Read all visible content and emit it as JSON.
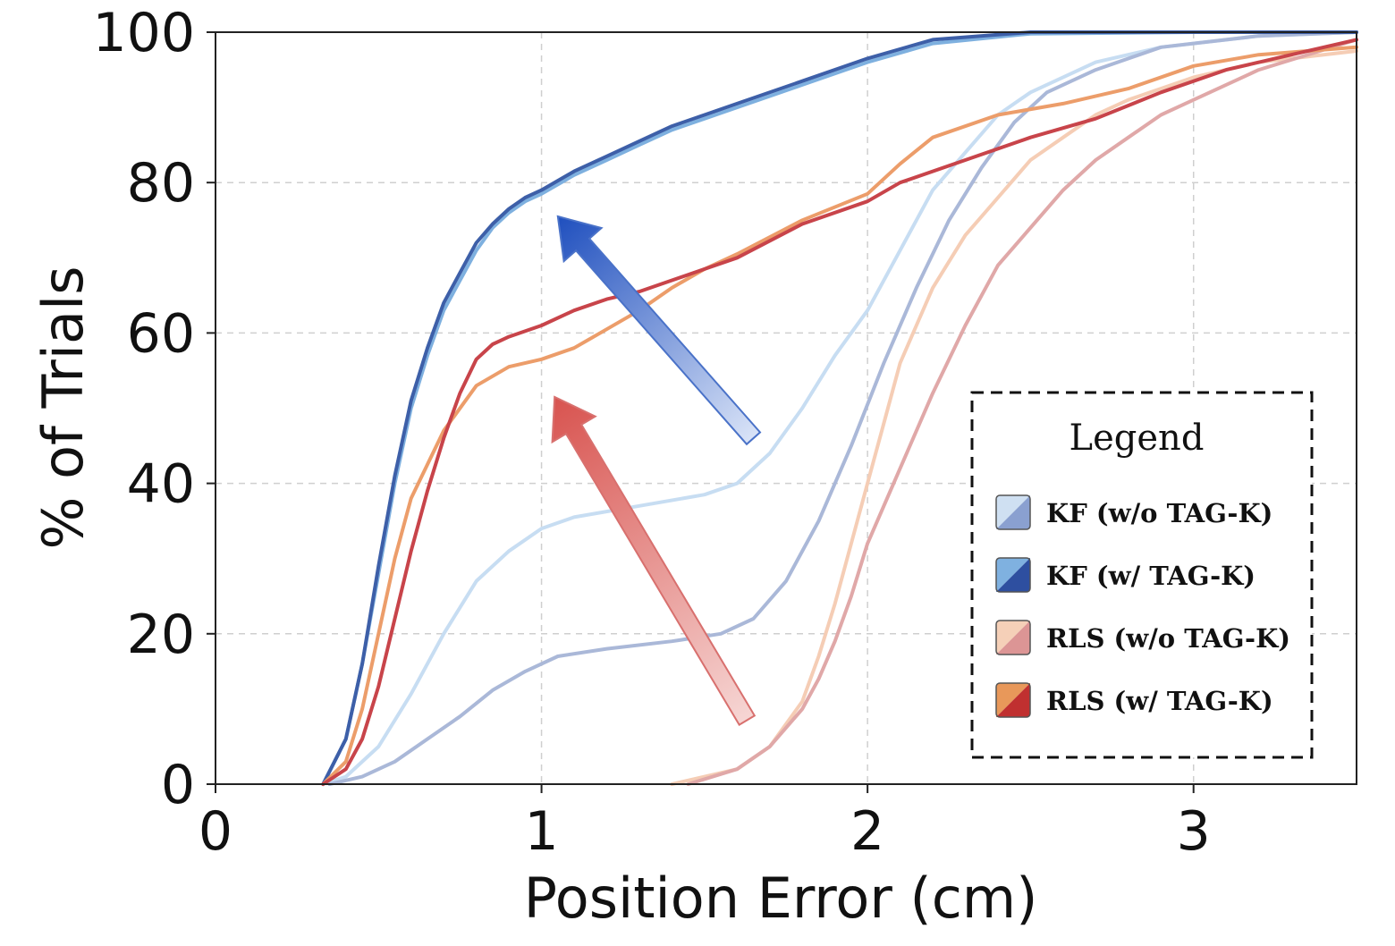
{
  "chart_data": {
    "type": "line",
    "subtype": "cumulative-distribution",
    "title": "",
    "xlabel": "Position Error (cm)",
    "ylabel": "% of Trials",
    "xlim": [
      0,
      3.5
    ],
    "ylim": [
      0,
      100
    ],
    "x_ticks": [
      0,
      1,
      2,
      3
    ],
    "y_ticks": [
      0,
      20,
      40,
      60,
      80,
      100
    ],
    "x_tick_labels": [
      "0",
      "1",
      "2",
      "3"
    ],
    "y_tick_labels": [
      "0",
      "20",
      "40",
      "60",
      "80",
      "100"
    ],
    "grid": true,
    "legend": {
      "title": "Legend",
      "placement": "lower-right",
      "entries": [
        {
          "label": "KF (w/o TAG-K)",
          "colors": [
            "#cfe0f2",
            "#8aa0d0"
          ]
        },
        {
          "label": "KF (w/ TAG-K)",
          "colors": [
            "#7fb1e0",
            "#2e4fa0"
          ]
        },
        {
          "label": "RLS (w/o TAG-K)",
          "colors": [
            "#f5d0b8",
            "#dc9595"
          ]
        },
        {
          "label": "RLS (w/ TAG-K)",
          "colors": [
            "#e8985a",
            "#c03030"
          ]
        }
      ]
    },
    "series": [
      {
        "name": "KF w/o TAG-K (light)",
        "color": "#c7ddf2",
        "width": 4,
        "x": [
          0.33,
          0.4,
          0.5,
          0.6,
          0.7,
          0.8,
          0.9,
          1.0,
          1.1,
          1.3,
          1.5,
          1.6,
          1.7,
          1.8,
          1.9,
          2.0,
          2.1,
          2.2,
          2.3,
          2.4,
          2.5,
          2.7,
          2.9,
          3.2,
          3.5
        ],
        "values": [
          0,
          1,
          5,
          12,
          20,
          27,
          31,
          34,
          35.5,
          37,
          38.5,
          40,
          44,
          50,
          57,
          63,
          71,
          79,
          84,
          89,
          92,
          96,
          98,
          99.5,
          100
        ]
      },
      {
        "name": "KF w/o TAG-K (dark)",
        "color": "#aab8d8",
        "width": 4,
        "x": [
          0.35,
          0.45,
          0.55,
          0.65,
          0.75,
          0.85,
          0.95,
          1.05,
          1.2,
          1.4,
          1.55,
          1.65,
          1.75,
          1.85,
          1.95,
          2.05,
          2.15,
          2.25,
          2.35,
          2.45,
          2.55,
          2.7,
          2.9,
          3.2,
          3.5
        ],
        "values": [
          0,
          1,
          3,
          6,
          9,
          12.5,
          15,
          17,
          18,
          19,
          20,
          22,
          27,
          35,
          45,
          56,
          66,
          75,
          82,
          88,
          92,
          95,
          98,
          99.5,
          100
        ]
      },
      {
        "name": "KF w/ TAG-K (light)",
        "color": "#7eb0df",
        "width": 4,
        "x": [
          0.33,
          0.4,
          0.45,
          0.5,
          0.55,
          0.6,
          0.65,
          0.7,
          0.75,
          0.8,
          0.85,
          0.9,
          0.95,
          1.0,
          1.1,
          1.2,
          1.3,
          1.4,
          1.5,
          1.6,
          1.8,
          2.0,
          2.2,
          2.5,
          3.0,
          3.5
        ],
        "values": [
          0,
          6,
          16,
          28,
          40,
          50,
          57,
          63,
          67,
          71,
          74,
          76,
          77.5,
          78.5,
          81,
          83,
          85,
          87,
          88.5,
          90,
          93,
          96,
          98.5,
          99.8,
          100,
          100
        ]
      },
      {
        "name": "KF w/ TAG-K (dark)",
        "color": "#3d5fa8",
        "width": 4,
        "x": [
          0.33,
          0.4,
          0.45,
          0.5,
          0.55,
          0.6,
          0.65,
          0.7,
          0.75,
          0.8,
          0.85,
          0.9,
          0.95,
          1.0,
          1.1,
          1.2,
          1.3,
          1.4,
          1.5,
          1.6,
          1.8,
          2.0,
          2.2,
          2.5,
          3.0,
          3.5
        ],
        "values": [
          0,
          6,
          16,
          29,
          41,
          51,
          58,
          64,
          68,
          72,
          74.5,
          76.5,
          78,
          79,
          81.5,
          83.5,
          85.5,
          87.5,
          89,
          90.5,
          93.5,
          96.5,
          99,
          100,
          100,
          100
        ]
      },
      {
        "name": "RLS w/o TAG-K (light)",
        "color": "#f5cdb5",
        "width": 4,
        "x": [
          1.4,
          1.6,
          1.7,
          1.8,
          1.85,
          1.9,
          1.95,
          2.0,
          2.05,
          2.1,
          2.15,
          2.2,
          2.3,
          2.4,
          2.5,
          2.6,
          2.7,
          2.8,
          3.0,
          3.2,
          3.5
        ],
        "values": [
          0,
          2,
          5,
          11,
          17,
          24,
          32,
          40,
          48,
          56,
          61,
          66,
          73,
          78,
          83,
          86,
          89,
          91,
          94,
          96,
          97.5
        ]
      },
      {
        "name": "RLS w/o TAG-K (dark)",
        "color": "#e0a8a8",
        "width": 4,
        "x": [
          1.45,
          1.6,
          1.7,
          1.8,
          1.85,
          1.9,
          1.95,
          2.0,
          2.1,
          2.2,
          2.3,
          2.4,
          2.5,
          2.6,
          2.7,
          2.8,
          2.9,
          3.0,
          3.2,
          3.5
        ],
        "values": [
          0,
          2,
          5,
          10,
          14,
          19,
          25,
          32,
          42,
          52,
          61,
          69,
          74,
          79,
          83,
          86,
          89,
          91,
          95,
          99
        ]
      },
      {
        "name": "RLS w/ TAG-K (light)",
        "color": "#ec9d6a",
        "width": 4,
        "x": [
          0.33,
          0.4,
          0.45,
          0.5,
          0.55,
          0.6,
          0.7,
          0.8,
          0.9,
          1.0,
          1.1,
          1.2,
          1.3,
          1.4,
          1.5,
          1.6,
          1.8,
          2.0,
          2.1,
          2.2,
          2.4,
          2.6,
          2.8,
          3.0,
          3.2,
          3.5
        ],
        "values": [
          0,
          3,
          10,
          20,
          30,
          38,
          47,
          53,
          55.5,
          56.5,
          58,
          60.5,
          63,
          66,
          68.5,
          70.5,
          75,
          78.5,
          82.5,
          86,
          89,
          90.5,
          92.5,
          95.5,
          97,
          98
        ]
      },
      {
        "name": "RLS w/ TAG-K (dark)",
        "color": "#c8444a",
        "width": 4,
        "x": [
          0.33,
          0.4,
          0.45,
          0.5,
          0.55,
          0.6,
          0.65,
          0.7,
          0.75,
          0.8,
          0.85,
          0.9,
          1.0,
          1.1,
          1.2,
          1.3,
          1.4,
          1.5,
          1.6,
          1.8,
          2.0,
          2.1,
          2.3,
          2.5,
          2.7,
          2.9,
          3.1,
          3.3,
          3.5
        ],
        "values": [
          0,
          2,
          6,
          13,
          22,
          31,
          39,
          46,
          52,
          56.5,
          58.5,
          59.5,
          61,
          63,
          64.5,
          65.5,
          67,
          68.5,
          70,
          74.5,
          77.5,
          80,
          83,
          86,
          88.5,
          92,
          95,
          97,
          99
        ]
      }
    ],
    "annotations": [
      {
        "type": "arrow",
        "direction": "up-left",
        "color": "#4a72c8",
        "from": [
          1.65,
          46
        ],
        "to": [
          1.05,
          75.5
        ]
      },
      {
        "type": "arrow",
        "direction": "up-left",
        "color": "#d8706e",
        "from": [
          1.63,
          8.5
        ],
        "to": [
          1.04,
          51.5
        ]
      }
    ]
  }
}
